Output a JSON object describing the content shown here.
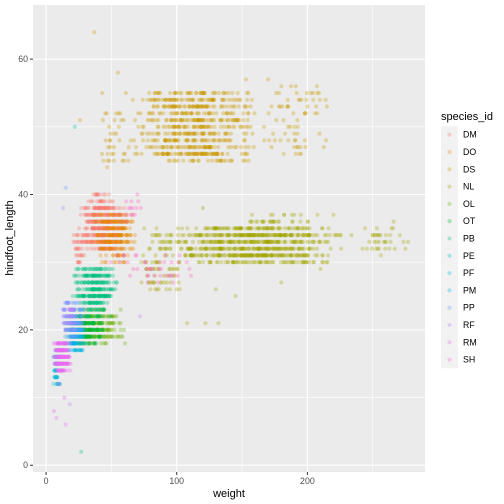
{
  "chart_data": {
    "type": "scatter",
    "xlabel": "weight",
    "ylabel": "hindfoot_length",
    "xlim": [
      -10,
      290
    ],
    "ylim": [
      -1,
      68
    ],
    "x_ticks": [
      0,
      100,
      200
    ],
    "y_ticks": [
      0,
      20,
      40,
      60
    ],
    "grid": true,
    "point_alpha": 0.3,
    "legend": {
      "title": "species_id",
      "placement": "right"
    },
    "series": [
      {
        "name": "DM",
        "color": "#F8766D",
        "clusters": [
          {
            "x": [
              25,
              62
            ],
            "y": [
              32,
              38
            ],
            "n": 380
          },
          {
            "x": [
              30,
              55
            ],
            "y": [
              38,
              40
            ],
            "n": 40
          },
          {
            "x": [
              20,
              30
            ],
            "y": [
              30,
              34
            ],
            "n": 30
          }
        ]
      },
      {
        "name": "DO",
        "color": "#E58700",
        "clusters": [
          {
            "x": [
              35,
              70
            ],
            "y": [
              32,
              37
            ],
            "n": 180
          },
          {
            "x": [
              40,
              65
            ],
            "y": [
              30,
              32
            ],
            "n": 30
          }
        ]
      },
      {
        "name": "DS",
        "color": "#C99800",
        "clusters": [
          {
            "x": [
              60,
              165
            ],
            "y": [
              45,
              55
            ],
            "n": 620
          },
          {
            "x": [
              165,
              220
            ],
            "y": [
              46,
              56
            ],
            "n": 70
          },
          {
            "x": [
              40,
              65
            ],
            "y": [
              44,
              52
            ],
            "n": 35
          }
        ],
        "points": [
          [
            37,
            64
          ],
          [
            55,
            58
          ],
          [
            43,
            55
          ],
          [
            170,
            57
          ],
          [
            153,
            57
          ],
          [
            26,
            51
          ],
          [
            61,
            55
          ]
        ]
      },
      {
        "name": "NL",
        "color": "#A3A500",
        "clusters": [
          {
            "x": [
              90,
              230
            ],
            "y": [
              30,
              35
            ],
            "n": 720
          },
          {
            "x": [
              230,
              280
            ],
            "y": [
              31,
              35
            ],
            "n": 35
          },
          {
            "x": [
              70,
              110
            ],
            "y": [
              26,
              35
            ],
            "n": 90
          },
          {
            "x": [
              150,
              210
            ],
            "y": [
              35,
              37
            ],
            "n": 40
          }
        ],
        "points": [
          [
            108,
            21
          ],
          [
            132,
            21
          ],
          [
            122,
            21
          ],
          [
            266,
            36
          ],
          [
            275,
            32
          ],
          [
            190,
            37
          ],
          [
            220,
            37
          ],
          [
            140,
            33
          ],
          [
            100,
            26
          ],
          [
            130,
            26
          ],
          [
            145,
            25
          ],
          [
            180,
            27
          ],
          [
            210,
            29
          ],
          [
            120,
            38
          ]
        ]
      },
      {
        "name": "OL",
        "color": "#6BB100",
        "clusters": [
          {
            "x": [
              18,
              62
            ],
            "y": [
              18,
              23
            ],
            "n": 180
          }
        ]
      },
      {
        "name": "OT",
        "color": "#00BA38",
        "clusters": [
          {
            "x": [
              15,
              45
            ],
            "y": [
              18,
              22
            ],
            "n": 200
          }
        ]
      },
      {
        "name": "PB",
        "color": "#00BF7D",
        "clusters": [
          {
            "x": [
              20,
              55
            ],
            "y": [
              24,
              29
            ],
            "n": 260
          },
          {
            "x": [
              25,
              50
            ],
            "y": [
              22,
              24
            ],
            "n": 40
          }
        ],
        "points": [
          [
            27,
            2
          ]
        ]
      },
      {
        "name": "PE",
        "color": "#00C0AF",
        "clusters": [
          {
            "x": [
              12,
              30
            ],
            "y": [
              17,
              21
            ],
            "n": 50
          }
        ],
        "points": [
          [
            22,
            50
          ]
        ]
      },
      {
        "name": "PF",
        "color": "#00BCD8",
        "clusters": [
          {
            "x": [
              5,
              12
            ],
            "y": [
              12,
              17
            ],
            "n": 60
          }
        ]
      },
      {
        "name": "PM",
        "color": "#00B0F6",
        "clusters": [
          {
            "x": [
              15,
              30
            ],
            "y": [
              17,
              21
            ],
            "n": 80
          }
        ]
      },
      {
        "name": "PP",
        "color": "#619CFF",
        "clusters": [
          {
            "x": [
              12,
              30
            ],
            "y": [
              19,
              24
            ],
            "n": 120
          }
        ],
        "points": [
          [
            15,
            41
          ]
        ]
      },
      {
        "name": "RF",
        "color": "#B983FF",
        "clusters": [
          {
            "x": [
              10,
              25
            ],
            "y": [
              20,
              24
            ],
            "n": 40
          }
        ],
        "points": [
          [
            72,
            22
          ],
          [
            13,
            38
          ],
          [
            18,
            9
          ]
        ]
      },
      {
        "name": "RM",
        "color": "#E76BF3",
        "clusters": [
          {
            "x": [
              5,
              20
            ],
            "y": [
              14,
              18
            ],
            "n": 180
          }
        ],
        "points": [
          [
            10,
            12
          ],
          [
            14,
            10
          ],
          [
            6,
            8
          ],
          [
            8,
            7
          ],
          [
            15,
            6
          ]
        ]
      },
      {
        "name": "SH",
        "color": "#FF61C3",
        "clusters": [
          {
            "x": [
              40,
              120
            ],
            "y": [
              27,
              31
            ],
            "n": 40
          },
          {
            "x": [
              55,
              75
            ],
            "y": [
              36,
              40
            ],
            "n": 15
          }
        ]
      }
    ]
  }
}
